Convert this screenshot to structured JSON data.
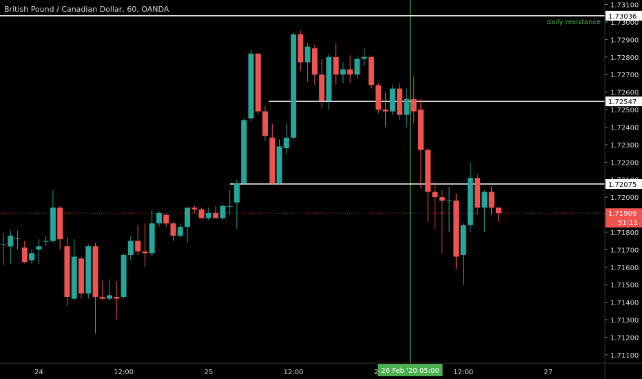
{
  "chart_data": {
    "type": "candlestick",
    "title": "British Pound / Canadian Dollar, 60, OANDA",
    "ylim": [
      1.71052,
      1.73126
    ],
    "y_ticks": [
      "1.73100",
      "1.73000",
      "1.72900",
      "1.72800",
      "1.72700",
      "1.72600",
      "1.72500",
      "1.72400",
      "1.72300",
      "1.72200",
      "1.72100",
      "1.72000",
      "1.71900",
      "1.71800",
      "1.71700",
      "1.71600",
      "1.71500",
      "1.71400",
      "1.71300",
      "1.71200",
      "1.71100"
    ],
    "x_ticks": [
      {
        "label": "24",
        "index": 5
      },
      {
        "label": "12:00",
        "index": 17
      },
      {
        "label": "25",
        "index": 29
      },
      {
        "label": "12:00",
        "index": 41
      },
      {
        "label": "26",
        "index": 53
      },
      {
        "label": "12:00",
        "index": 65
      },
      {
        "label": "27",
        "index": 77
      }
    ],
    "crosshair": {
      "index": 57.5,
      "label": "26 Feb '20   05:00",
      "color": "#4caf50"
    },
    "current_price": {
      "value": "1.71909",
      "countdown": "51:11",
      "color": "#ef5350"
    },
    "colors": {
      "up": "#26a69a",
      "down": "#ef5350",
      "background": "#000000",
      "level_line": "#ffffff"
    },
    "levels": [
      {
        "value": 1.73036,
        "label": "1.73036",
        "from_index": -1,
        "annotation": "daily resistance",
        "annotation_color": "#4caf50"
      },
      {
        "value": 1.72547,
        "label": "1.72547",
        "from_index": 37.5,
        "annotation": ""
      },
      {
        "value": 1.72075,
        "label": "1.72075",
        "from_index": 32,
        "annotation": ""
      }
    ],
    "candles": [
      {
        "o": 1.71731,
        "h": 1.71796,
        "l": 1.71613,
        "c": 1.71731
      },
      {
        "o": 1.71719,
        "h": 1.7181,
        "l": 1.7162,
        "c": 1.7178
      },
      {
        "o": 1.71765,
        "h": 1.7181,
        "l": 1.717,
        "c": 1.71765
      },
      {
        "o": 1.71712,
        "h": 1.7175,
        "l": 1.7162,
        "c": 1.7163
      },
      {
        "o": 1.7164,
        "h": 1.717,
        "l": 1.7162,
        "c": 1.7168
      },
      {
        "o": 1.717,
        "h": 1.7176,
        "l": 1.7162,
        "c": 1.7172
      },
      {
        "o": 1.7175,
        "h": 1.7178,
        "l": 1.7172,
        "c": 1.7175
      },
      {
        "o": 1.7175,
        "h": 1.7204,
        "l": 1.7174,
        "c": 1.7194
      },
      {
        "o": 1.7194,
        "h": 1.7195,
        "l": 1.717,
        "c": 1.7176
      },
      {
        "o": 1.7172,
        "h": 1.7177,
        "l": 1.7138,
        "c": 1.7143
      },
      {
        "o": 1.7142,
        "h": 1.7176,
        "l": 1.7141,
        "c": 1.7166
      },
      {
        "o": 1.7165,
        "h": 1.7166,
        "l": 1.7142,
        "c": 1.7145
      },
      {
        "o": 1.7145,
        "h": 1.7173,
        "l": 1.7142,
        "c": 1.7172
      },
      {
        "o": 1.7172,
        "h": 1.7174,
        "l": 1.7122,
        "c": 1.7143
      },
      {
        "o": 1.7143,
        "h": 1.7152,
        "l": 1.7141,
        "c": 1.7142
      },
      {
        "o": 1.7142,
        "h": 1.7153,
        "l": 1.7141,
        "c": 1.7144
      },
      {
        "o": 1.7143,
        "h": 1.7152,
        "l": 1.713,
        "c": 1.7142
      },
      {
        "o": 1.7143,
        "h": 1.7168,
        "l": 1.7142,
        "c": 1.7167
      },
      {
        "o": 1.7167,
        "h": 1.7178,
        "l": 1.7164,
        "c": 1.7175
      },
      {
        "o": 1.7175,
        "h": 1.7184,
        "l": 1.7167,
        "c": 1.7169
      },
      {
        "o": 1.7169,
        "h": 1.7185,
        "l": 1.716,
        "c": 1.7168
      },
      {
        "o": 1.7168,
        "h": 1.7193,
        "l": 1.7166,
        "c": 1.7185
      },
      {
        "o": 1.7185,
        "h": 1.7192,
        "l": 1.7183,
        "c": 1.7191
      },
      {
        "o": 1.719,
        "h": 1.719,
        "l": 1.7183,
        "c": 1.7185
      },
      {
        "o": 1.7185,
        "h": 1.7186,
        "l": 1.7175,
        "c": 1.7178
      },
      {
        "o": 1.7178,
        "h": 1.7185,
        "l": 1.7177,
        "c": 1.7183
      },
      {
        "o": 1.7183,
        "h": 1.7194,
        "l": 1.7174,
        "c": 1.7194
      },
      {
        "o": 1.7194,
        "h": 1.7195,
        "l": 1.7191,
        "c": 1.7193
      },
      {
        "o": 1.7193,
        "h": 1.7194,
        "l": 1.7188,
        "c": 1.7188
      },
      {
        "o": 1.7188,
        "h": 1.7194,
        "l": 1.7187,
        "c": 1.7191
      },
      {
        "o": 1.7191,
        "h": 1.7195,
        "l": 1.7188,
        "c": 1.7188
      },
      {
        "o": 1.7188,
        "h": 1.7196,
        "l": 1.7187,
        "c": 1.7195
      },
      {
        "o": 1.7195,
        "h": 1.7204,
        "l": 1.719,
        "c": 1.7195
      },
      {
        "o": 1.7197,
        "h": 1.721,
        "l": 1.7182,
        "c": 1.7208
      },
      {
        "o": 1.7208,
        "h": 1.7245,
        "l": 1.7207,
        "c": 1.7244
      },
      {
        "o": 1.7245,
        "h": 1.7284,
        "l": 1.7243,
        "c": 1.7282
      },
      {
        "o": 1.7282,
        "h": 1.7282,
        "l": 1.7247,
        "c": 1.7249
      },
      {
        "o": 1.7249,
        "h": 1.7252,
        "l": 1.7232,
        "c": 1.7235
      },
      {
        "o": 1.7234,
        "h": 1.7242,
        "l": 1.7207,
        "c": 1.7208
      },
      {
        "o": 1.7208,
        "h": 1.7233,
        "l": 1.7207,
        "c": 1.7229
      },
      {
        "o": 1.7228,
        "h": 1.7242,
        "l": 1.7225,
        "c": 1.7234
      },
      {
        "o": 1.7234,
        "h": 1.7294,
        "l": 1.7233,
        "c": 1.7293
      },
      {
        "o": 1.7293,
        "h": 1.7295,
        "l": 1.7272,
        "c": 1.7277
      },
      {
        "o": 1.7277,
        "h": 1.7288,
        "l": 1.7266,
        "c": 1.7286
      },
      {
        "o": 1.7285,
        "h": 1.7287,
        "l": 1.7264,
        "c": 1.727
      },
      {
        "o": 1.727,
        "h": 1.7279,
        "l": 1.7251,
        "c": 1.7255
      },
      {
        "o": 1.7255,
        "h": 1.7282,
        "l": 1.725,
        "c": 1.728
      },
      {
        "o": 1.728,
        "h": 1.7288,
        "l": 1.7264,
        "c": 1.727
      },
      {
        "o": 1.727,
        "h": 1.7277,
        "l": 1.7265,
        "c": 1.7273
      },
      {
        "o": 1.7273,
        "h": 1.7281,
        "l": 1.7265,
        "c": 1.727
      },
      {
        "o": 1.727,
        "h": 1.728,
        "l": 1.7268,
        "c": 1.7279
      },
      {
        "o": 1.7279,
        "h": 1.7285,
        "l": 1.7275,
        "c": 1.728
      },
      {
        "o": 1.728,
        "h": 1.7281,
        "l": 1.7262,
        "c": 1.7264
      },
      {
        "o": 1.7264,
        "h": 1.7265,
        "l": 1.7248,
        "c": 1.725
      },
      {
        "o": 1.725,
        "h": 1.726,
        "l": 1.724,
        "c": 1.7249
      },
      {
        "o": 1.7249,
        "h": 1.7264,
        "l": 1.7247,
        "c": 1.7262
      },
      {
        "o": 1.7262,
        "h": 1.7265,
        "l": 1.7244,
        "c": 1.7247
      },
      {
        "o": 1.7247,
        "h": 1.7262,
        "l": 1.724,
        "c": 1.7256
      },
      {
        "o": 1.7256,
        "h": 1.7269,
        "l": 1.7242,
        "c": 1.7249
      },
      {
        "o": 1.725,
        "h": 1.7256,
        "l": 1.7205,
        "c": 1.7227
      },
      {
        "o": 1.7227,
        "h": 1.7228,
        "l": 1.7186,
        "c": 1.7203
      },
      {
        "o": 1.7203,
        "h": 1.7209,
        "l": 1.7182,
        "c": 1.72
      },
      {
        "o": 1.72,
        "h": 1.7204,
        "l": 1.7168,
        "c": 1.7198
      },
      {
        "o": 1.7198,
        "h": 1.7206,
        "l": 1.718,
        "c": 1.7198
      },
      {
        "o": 1.7198,
        "h": 1.7202,
        "l": 1.7159,
        "c": 1.7166
      },
      {
        "o": 1.7167,
        "h": 1.7185,
        "l": 1.715,
        "c": 1.7184
      },
      {
        "o": 1.7184,
        "h": 1.722,
        "l": 1.718,
        "c": 1.7211
      },
      {
        "o": 1.7211,
        "h": 1.7213,
        "l": 1.719,
        "c": 1.7194
      },
      {
        "o": 1.7194,
        "h": 1.7204,
        "l": 1.718,
        "c": 1.7203
      },
      {
        "o": 1.7203,
        "h": 1.7206,
        "l": 1.719,
        "c": 1.7194
      },
      {
        "o": 1.7194,
        "h": 1.7194,
        "l": 1.7186,
        "c": 1.7191
      }
    ]
  }
}
